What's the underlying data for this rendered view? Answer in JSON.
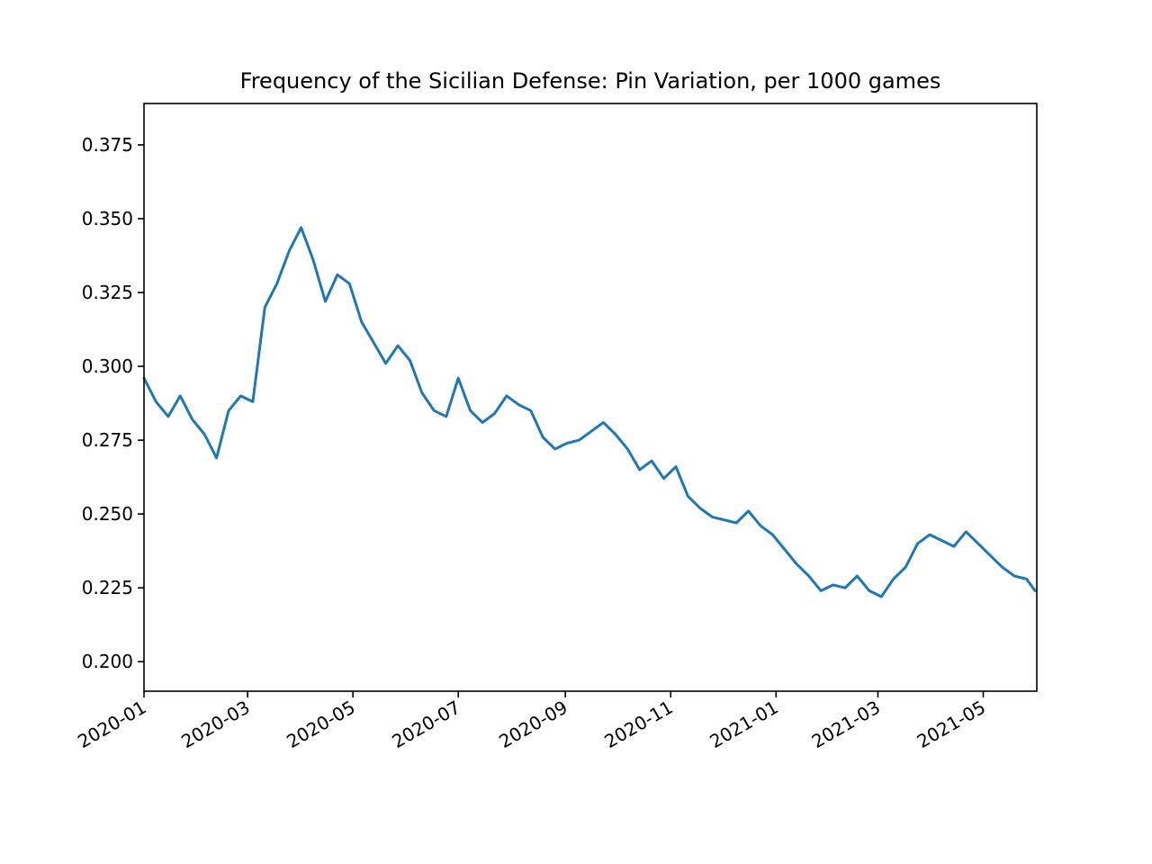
{
  "chart_data": {
    "type": "line",
    "title": "Frequency of the Sicilian Defense: Pin Variation, per 1000 games",
    "xlabel": "",
    "ylabel": "",
    "grid": false,
    "legend": "none",
    "x_ticks": [
      "2020-01",
      "2020-03",
      "2020-05",
      "2020-07",
      "2020-09",
      "2020-11",
      "2021-01",
      "2021-03",
      "2021-05"
    ],
    "y_ticks": [
      "0.200",
      "0.225",
      "0.250",
      "0.275",
      "0.300",
      "0.325",
      "0.350",
      "0.375"
    ],
    "xlim": [
      "2020-01-01",
      "2021-06-01"
    ],
    "ylim": [
      0.19,
      0.389
    ],
    "series": [
      {
        "color": "#1f77b4",
        "x": [
          "2020-01-01",
          "2020-01-08",
          "2020-01-15",
          "2020-01-22",
          "2020-01-29",
          "2020-02-05",
          "2020-02-12",
          "2020-02-19",
          "2020-02-26",
          "2020-03-04",
          "2020-03-11",
          "2020-03-18",
          "2020-03-25",
          "2020-04-01",
          "2020-04-08",
          "2020-04-15",
          "2020-04-22",
          "2020-04-29",
          "2020-05-06",
          "2020-05-13",
          "2020-05-20",
          "2020-05-27",
          "2020-06-03",
          "2020-06-10",
          "2020-06-17",
          "2020-06-24",
          "2020-07-01",
          "2020-07-08",
          "2020-07-15",
          "2020-07-22",
          "2020-07-29",
          "2020-08-05",
          "2020-08-12",
          "2020-08-19",
          "2020-08-26",
          "2020-09-02",
          "2020-09-09",
          "2020-09-16",
          "2020-09-23",
          "2020-09-30",
          "2020-10-07",
          "2020-10-14",
          "2020-10-21",
          "2020-10-28",
          "2020-11-04",
          "2020-11-11",
          "2020-11-18",
          "2020-11-25",
          "2020-12-02",
          "2020-12-09",
          "2020-12-16",
          "2020-12-23",
          "2020-12-30",
          "2021-01-06",
          "2021-01-13",
          "2021-01-20",
          "2021-01-27",
          "2021-02-03",
          "2021-02-10",
          "2021-02-17",
          "2021-02-24",
          "2021-03-03",
          "2021-03-10",
          "2021-03-17",
          "2021-03-24",
          "2021-03-31",
          "2021-04-07",
          "2021-04-14",
          "2021-04-21",
          "2021-04-28",
          "2021-05-05",
          "2021-05-12",
          "2021-05-19",
          "2021-05-26",
          "2021-05-31"
        ],
        "y": [
          0.296,
          0.288,
          0.283,
          0.29,
          0.282,
          0.277,
          0.269,
          0.285,
          0.29,
          0.288,
          0.32,
          0.328,
          0.339,
          0.347,
          0.336,
          0.322,
          0.331,
          0.328,
          0.315,
          0.308,
          0.301,
          0.307,
          0.302,
          0.291,
          0.285,
          0.283,
          0.296,
          0.285,
          0.281,
          0.284,
          0.29,
          0.287,
          0.285,
          0.276,
          0.272,
          0.274,
          0.275,
          0.278,
          0.281,
          0.277,
          0.272,
          0.265,
          0.268,
          0.262,
          0.266,
          0.256,
          0.252,
          0.249,
          0.248,
          0.247,
          0.251,
          0.246,
          0.243,
          0.238,
          0.233,
          0.229,
          0.224,
          0.226,
          0.225,
          0.229,
          0.224,
          0.222,
          0.228,
          0.232,
          0.24,
          0.243,
          0.241,
          0.239,
          0.244,
          0.24,
          0.236,
          0.232,
          0.229,
          0.228,
          0.224
        ]
      }
    ]
  }
}
